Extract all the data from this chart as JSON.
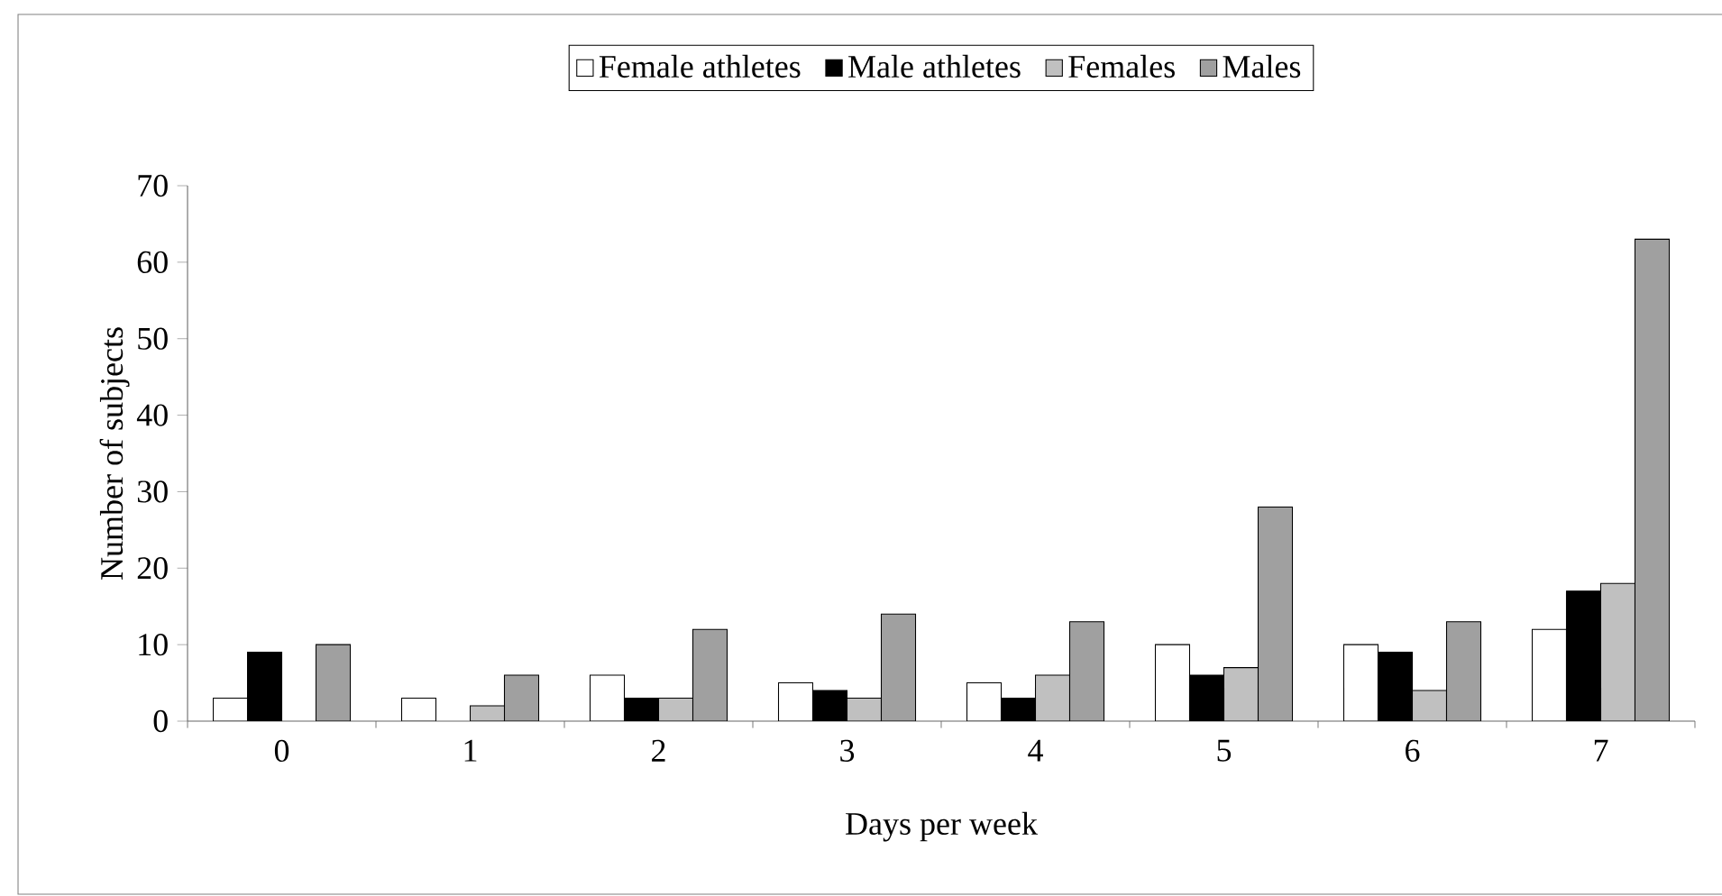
{
  "chart_data": {
    "type": "bar",
    "xlabel": "Days per week",
    "ylabel": "Number of subjects",
    "categories": [
      "0",
      "1",
      "2",
      "3",
      "4",
      "5",
      "6",
      "7"
    ],
    "series": [
      {
        "name": "Female athletes",
        "color": "#ffffff",
        "values": [
          3,
          3,
          6,
          5,
          5,
          10,
          10,
          12
        ]
      },
      {
        "name": "Male athletes",
        "color": "#000000",
        "values": [
          9,
          0,
          3,
          4,
          3,
          6,
          9,
          17
        ]
      },
      {
        "name": "Females",
        "color": "#c0c0c0",
        "values": [
          0,
          2,
          3,
          3,
          6,
          7,
          4,
          18
        ]
      },
      {
        "name": "Males",
        "color": "#a0a0a0",
        "values": [
          10,
          6,
          12,
          14,
          13,
          28,
          13,
          63
        ]
      }
    ],
    "ylim": [
      0,
      70
    ],
    "yticks": [
      0,
      10,
      20,
      30,
      40,
      50,
      60,
      70
    ],
    "legend": "top",
    "grid": false
  }
}
